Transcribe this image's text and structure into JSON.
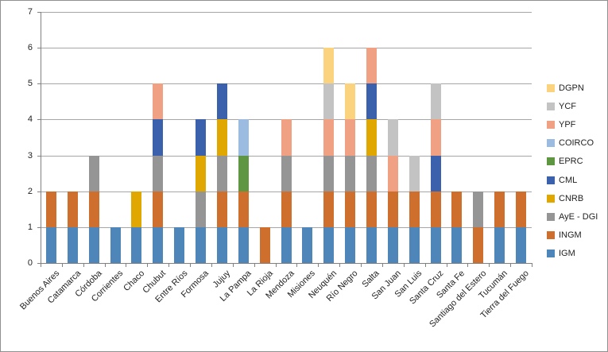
{
  "window": {
    "background": "#ffffff",
    "border_color": "#909090"
  },
  "chart_data": {
    "type": "bar",
    "stacked": true,
    "title": "",
    "xlabel": "",
    "ylabel": "",
    "ylim": [
      0,
      7
    ],
    "yticks": [
      "0",
      "1",
      "2",
      "3",
      "4",
      "5",
      "6",
      "7"
    ],
    "grid": true,
    "legend_position": "right",
    "categories": [
      "Buenos Aires",
      "Catamarca",
      "Córdoba",
      "Corrientes",
      "Chaco",
      "Chubut",
      "Entre Ríos",
      "Formosa",
      "Jujuy",
      "La Pampa",
      "La Rioja",
      "Mendoza",
      "Misiones",
      "Neuquén",
      "Río Negro",
      "Salta",
      "San Juan",
      "San Luis",
      "Santa Cruz",
      "Santa Fe",
      "Santiago del Estero",
      "Tucumán",
      "Tierra del Fuego"
    ],
    "series": [
      {
        "name": "IGM",
        "color": "#4E86BA",
        "values": [
          1,
          1,
          1,
          1,
          1,
          1,
          1,
          1,
          1,
          1,
          0,
          1,
          1,
          1,
          1,
          1,
          1,
          1,
          1,
          1,
          0,
          1,
          1
        ]
      },
      {
        "name": "INGM",
        "color": "#CF6F2E",
        "values": [
          1,
          1,
          1,
          0,
          0,
          1,
          0,
          0,
          1,
          1,
          1,
          1,
          0,
          1,
          1,
          1,
          1,
          1,
          1,
          1,
          1,
          1,
          1
        ]
      },
      {
        "name": "AyE - DGI",
        "color": "#959595",
        "values": [
          0,
          0,
          1,
          0,
          0,
          1,
          0,
          1,
          1,
          0,
          0,
          1,
          0,
          1,
          1,
          1,
          0,
          0,
          0,
          0,
          1,
          0,
          0
        ]
      },
      {
        "name": "CNRB",
        "color": "#E0A700",
        "values": [
          0,
          0,
          0,
          0,
          1,
          0,
          0,
          1,
          1,
          0,
          0,
          0,
          0,
          0,
          0,
          1,
          0,
          0,
          0,
          0,
          0,
          0,
          0
        ]
      },
      {
        "name": "CML",
        "color": "#3B61AC",
        "values": [
          0,
          0,
          0,
          0,
          0,
          1,
          0,
          1,
          1,
          0,
          0,
          0,
          0,
          0,
          0,
          1,
          0,
          0,
          1,
          0,
          0,
          0,
          0
        ]
      },
      {
        "name": "EPRC",
        "color": "#5F9642",
        "values": [
          0,
          0,
          0,
          0,
          0,
          0,
          0,
          0,
          0,
          1,
          0,
          0,
          0,
          0,
          0,
          0,
          0,
          0,
          0,
          0,
          0,
          0,
          0
        ]
      },
      {
        "name": "COIRCO",
        "color": "#9CBBE1",
        "values": [
          0,
          0,
          0,
          0,
          0,
          0,
          0,
          0,
          0,
          1,
          0,
          0,
          0,
          0,
          0,
          0,
          0,
          0,
          0,
          0,
          0,
          0,
          0
        ]
      },
      {
        "name": "YPF",
        "color": "#F0A183",
        "values": [
          0,
          0,
          0,
          0,
          0,
          1,
          0,
          0,
          0,
          0,
          0,
          1,
          0,
          1,
          1,
          1,
          1,
          0,
          1,
          0,
          0,
          0,
          0
        ]
      },
      {
        "name": "YCF",
        "color": "#C3C3C3",
        "values": [
          0,
          0,
          0,
          0,
          0,
          0,
          0,
          0,
          0,
          0,
          0,
          0,
          0,
          1,
          0,
          0,
          1,
          1,
          1,
          0,
          0,
          0,
          0
        ]
      },
      {
        "name": "DGPN",
        "color": "#FBD27E",
        "values": [
          0,
          0,
          0,
          0,
          0,
          0,
          0,
          0,
          0,
          0,
          0,
          0,
          0,
          1,
          1,
          0,
          0,
          0,
          0,
          0,
          0,
          0,
          0
        ]
      }
    ],
    "totals_by_category": [
      2,
      2,
      3,
      1,
      2,
      5,
      1,
      4,
      5,
      4,
      1,
      4,
      1,
      6,
      5,
      6,
      4,
      3,
      5,
      2,
      2,
      2,
      2
    ],
    "legend_items_top_to_bottom": [
      "DGPN",
      "YCF",
      "YPF",
      "COIRCO",
      "EPRC",
      "CML",
      "CNRB",
      "AyE - DGI",
      "INGM",
      "IGM"
    ]
  }
}
